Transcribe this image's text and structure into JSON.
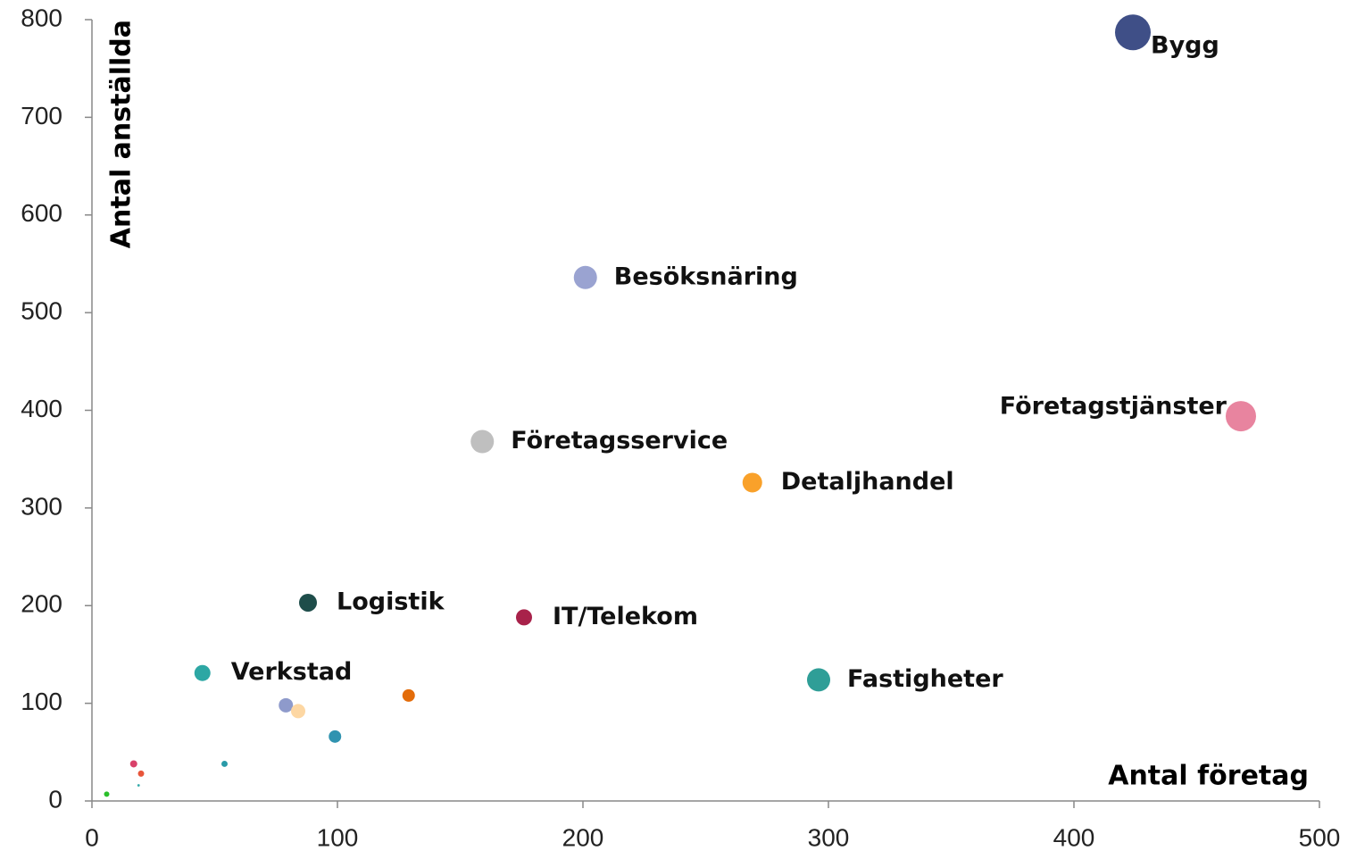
{
  "chart_data": {
    "type": "bubble",
    "x_label": "Antal företag",
    "y_label": "Antal anställda",
    "xlim": [
      0,
      500
    ],
    "xticks": [
      0,
      100,
      200,
      300,
      400,
      500
    ],
    "ylim": [
      0,
      800
    ],
    "yticks": [
      0,
      100,
      200,
      300,
      400,
      500,
      600,
      700,
      800
    ],
    "labels": [
      "Bygg",
      "Besöksnäring",
      "Företagstjänster",
      "Företagsservice",
      "Detaljhandel",
      "Logistik",
      "IT/Telekom",
      "Verkstad",
      "Fastigheter",
      null,
      null,
      null,
      null,
      null,
      null,
      null,
      null,
      null
    ],
    "x": [
      424,
      201,
      468,
      159,
      269,
      88,
      176,
      45,
      296,
      79,
      84,
      129,
      99,
      54,
      17,
      20,
      19,
      6
    ],
    "values": [
      787,
      536,
      394,
      368,
      326,
      203,
      188,
      131,
      124,
      98,
      92,
      108,
      66,
      38,
      38,
      28,
      16,
      7
    ],
    "sizes": [
      400,
      169,
      289,
      169,
      121,
      100,
      81,
      81,
      169,
      64,
      64,
      49,
      49,
      12,
      16,
      12,
      2,
      9
    ],
    "colors": [
      "#3f4f87",
      "#9aa3d1",
      "#e8849f",
      "#bfbfbf",
      "#f9a12a",
      "#1e4d4a",
      "#a8224a",
      "#2da7a4",
      "#2f9e97",
      "#8e9acb",
      "#fdd7a3",
      "#e36c0a",
      "#3093b0",
      "#2a9aa8",
      "#d9416a",
      "#e8553a",
      "#33aaaa",
      "#2bbf2b"
    ]
  }
}
